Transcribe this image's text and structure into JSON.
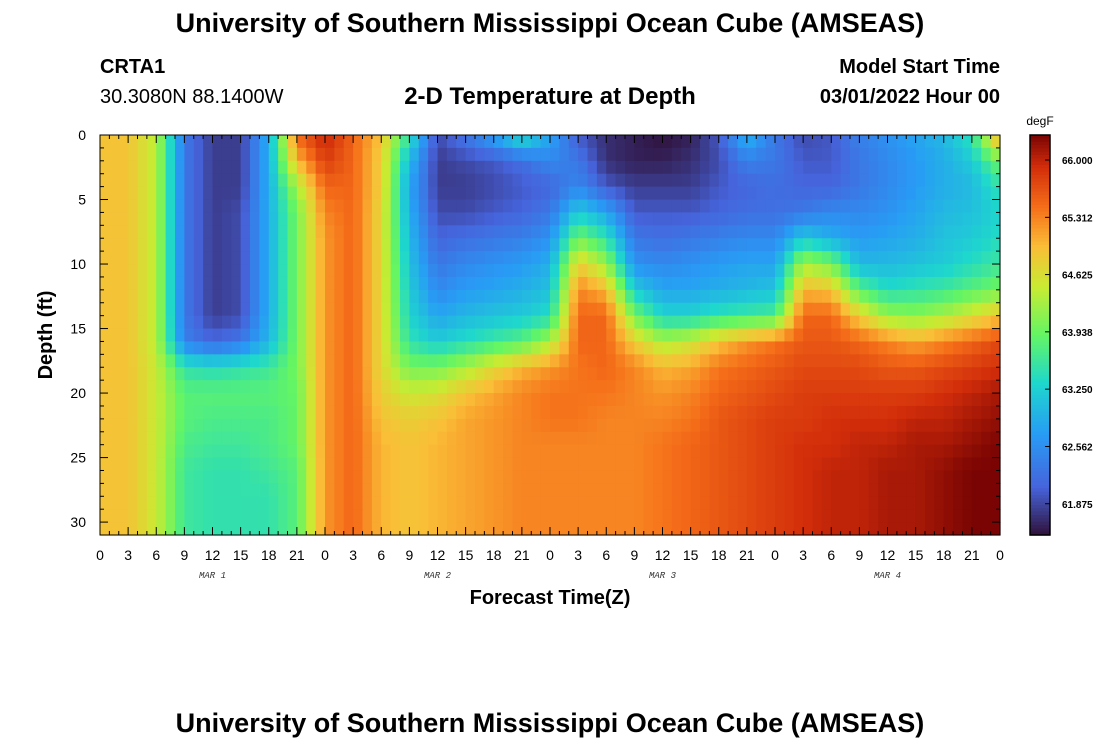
{
  "header": {
    "title": "University of Southern Mississippi Ocean Cube (AMSEAS)",
    "station": "CRTA1",
    "coordinates": "30.3080N  88.1400W",
    "subtitle": "2-D Temperature at Depth",
    "start_label": "Model Start Time",
    "start_value": "03/01/2022 Hour 00"
  },
  "footer": {
    "title": "University of Southern Mississippi Ocean Cube (AMSEAS)"
  },
  "chart_data": {
    "type": "heatmap",
    "title": "2-D Temperature at Depth",
    "xlabel": "Forecast Time(Z)",
    "ylabel": "Depth (ft)",
    "x_range_hours": [
      0,
      96
    ],
    "ylim": [
      0,
      31
    ],
    "x_tick_labels": [
      "0",
      "3",
      "6",
      "9",
      "12",
      "15",
      "18",
      "21",
      "0",
      "3",
      "6",
      "9",
      "12",
      "15",
      "18",
      "21",
      "0",
      "3",
      "6",
      "9",
      "12",
      "15",
      "18",
      "21",
      "0",
      "3",
      "6",
      "9",
      "12",
      "15",
      "18",
      "21",
      "0"
    ],
    "y_ticks": [
      0,
      5,
      10,
      15,
      20,
      25,
      30
    ],
    "date_labels": [
      {
        "hour": 12,
        "label": "MAR 1"
      },
      {
        "hour": 36,
        "label": "MAR 2"
      },
      {
        "hour": 60,
        "label": "MAR 3"
      },
      {
        "hour": 84,
        "label": "MAR 4"
      }
    ],
    "colorbar": {
      "unit": "degF",
      "min": 61.5,
      "max": 66.3,
      "ticks": [
        "66.000",
        "65.312",
        "64.625",
        "63.938",
        "63.250",
        "62.562",
        "61.875"
      ]
    },
    "grid": {
      "depths": [
        0,
        2,
        4,
        6,
        8,
        10,
        12,
        14,
        16,
        18,
        20,
        22,
        24,
        26,
        28,
        31
      ],
      "times": [
        0,
        3,
        6,
        9,
        12,
        15,
        18,
        21,
        24,
        27,
        30,
        33,
        36,
        39,
        42,
        45,
        48,
        51,
        54,
        57,
        60,
        63,
        66,
        69,
        72,
        75,
        78,
        81,
        84,
        87,
        90,
        93,
        96
      ],
      "temps": [
        [
          64.9,
          64.9,
          64.4,
          62.3,
          61.8,
          61.8,
          62.9,
          65.5,
          66.0,
          65.5,
          64.9,
          63.5,
          61.9,
          62.3,
          62.8,
          63.5,
          62.8,
          62.0,
          61.7,
          61.6,
          61.5,
          61.6,
          62.0,
          63.0,
          62.3,
          61.9,
          62.0,
          62.4,
          62.6,
          62.8,
          63.0,
          63.5,
          65.3
        ],
        [
          64.9,
          64.9,
          64.4,
          62.3,
          61.8,
          61.8,
          62.9,
          65.0,
          65.8,
          65.5,
          64.8,
          63.0,
          61.8,
          61.9,
          62.0,
          62.2,
          62.5,
          62.3,
          61.7,
          61.6,
          61.6,
          61.7,
          61.9,
          62.4,
          62.3,
          62.0,
          62.0,
          62.3,
          62.5,
          62.7,
          62.9,
          63.2,
          64.0
        ],
        [
          64.9,
          64.9,
          64.4,
          62.3,
          61.8,
          61.8,
          62.9,
          64.3,
          65.5,
          65.5,
          64.8,
          62.8,
          61.8,
          61.8,
          61.9,
          62.0,
          62.1,
          62.5,
          62.0,
          61.8,
          61.8,
          61.8,
          62.0,
          62.1,
          62.2,
          62.1,
          62.1,
          62.3,
          62.5,
          62.7,
          62.9,
          63.0,
          63.5
        ],
        [
          64.9,
          64.9,
          64.4,
          62.3,
          61.8,
          61.9,
          62.9,
          64.0,
          65.3,
          65.5,
          64.7,
          62.9,
          61.9,
          61.9,
          62.0,
          62.1,
          62.3,
          63.2,
          62.8,
          62.0,
          62.0,
          62.0,
          62.1,
          62.2,
          62.2,
          62.3,
          62.5,
          62.5,
          62.6,
          62.8,
          63.0,
          63.1,
          63.3
        ],
        [
          64.9,
          64.9,
          64.4,
          62.3,
          61.8,
          61.9,
          62.9,
          64.0,
          65.2,
          65.5,
          64.7,
          63.0,
          62.1,
          62.2,
          62.3,
          62.4,
          62.6,
          64.0,
          63.5,
          62.3,
          62.2,
          62.3,
          62.4,
          62.5,
          62.5,
          63.2,
          62.9,
          62.7,
          62.8,
          62.9,
          63.1,
          63.2,
          63.4
        ],
        [
          64.9,
          64.9,
          64.4,
          62.3,
          61.8,
          61.9,
          62.9,
          64.0,
          65.2,
          65.5,
          64.7,
          63.1,
          62.3,
          62.5,
          62.6,
          62.7,
          62.9,
          64.8,
          64.2,
          62.6,
          62.5,
          62.6,
          62.7,
          62.8,
          62.8,
          64.3,
          64.0,
          63.0,
          63.0,
          63.1,
          63.2,
          63.4,
          63.6
        ],
        [
          64.9,
          64.9,
          64.4,
          62.3,
          61.8,
          61.9,
          62.9,
          64.0,
          65.2,
          65.5,
          64.7,
          63.2,
          62.5,
          62.7,
          62.8,
          62.9,
          63.1,
          65.3,
          65.0,
          63.2,
          62.8,
          62.8,
          62.9,
          63.0,
          63.1,
          65.0,
          64.9,
          63.8,
          63.4,
          63.5,
          63.6,
          63.8,
          64.0
        ],
        [
          64.9,
          64.9,
          64.4,
          62.3,
          61.8,
          61.9,
          62.9,
          64.0,
          65.2,
          65.5,
          64.7,
          63.3,
          62.8,
          63.0,
          63.1,
          63.2,
          63.4,
          65.5,
          65.5,
          64.0,
          63.3,
          63.3,
          63.5,
          63.6,
          63.7,
          65.5,
          65.5,
          64.8,
          64.2,
          64.1,
          64.3,
          64.6,
          64.9
        ],
        [
          64.9,
          64.9,
          64.4,
          62.4,
          62.1,
          62.3,
          63.0,
          64.0,
          65.2,
          65.5,
          64.7,
          63.5,
          63.2,
          63.4,
          63.6,
          63.8,
          64.3,
          65.5,
          65.5,
          64.8,
          64.3,
          64.5,
          64.9,
          65.2,
          65.4,
          65.6,
          65.6,
          65.5,
          65.3,
          65.1,
          65.3,
          65.5,
          65.7
        ],
        [
          64.9,
          64.9,
          64.5,
          63.5,
          63.4,
          63.5,
          63.6,
          64.0,
          65.2,
          65.5,
          64.7,
          64.0,
          64.0,
          64.3,
          64.7,
          65.0,
          65.2,
          65.4,
          65.5,
          65.3,
          65.0,
          65.1,
          65.4,
          65.5,
          65.6,
          65.7,
          65.7,
          65.7,
          65.6,
          65.6,
          65.7,
          65.8,
          65.9
        ],
        [
          64.9,
          64.9,
          64.5,
          63.8,
          63.8,
          63.8,
          63.8,
          63.9,
          65.2,
          65.5,
          64.8,
          64.5,
          64.6,
          64.9,
          65.1,
          65.3,
          65.4,
          65.4,
          65.4,
          65.3,
          65.2,
          65.3,
          65.5,
          65.6,
          65.7,
          65.8,
          65.8,
          65.8,
          65.8,
          65.8,
          65.9,
          66.0,
          66.1
        ],
        [
          64.9,
          64.9,
          64.5,
          63.8,
          63.7,
          63.7,
          63.7,
          63.9,
          65.2,
          65.5,
          64.9,
          64.8,
          64.9,
          65.1,
          65.2,
          65.3,
          65.4,
          65.4,
          65.3,
          65.3,
          65.3,
          65.4,
          65.6,
          65.7,
          65.8,
          65.8,
          65.9,
          65.9,
          65.9,
          66.0,
          66.0,
          66.1,
          66.2
        ],
        [
          64.9,
          64.9,
          64.5,
          63.7,
          63.6,
          63.6,
          63.7,
          63.9,
          65.2,
          65.5,
          65.0,
          64.9,
          65.0,
          65.1,
          65.2,
          65.3,
          65.3,
          65.3,
          65.3,
          65.3,
          65.4,
          65.5,
          65.6,
          65.7,
          65.8,
          65.9,
          65.9,
          66.0,
          66.0,
          66.1,
          66.1,
          66.2,
          66.3
        ],
        [
          64.9,
          64.9,
          64.5,
          63.6,
          63.5,
          63.5,
          63.6,
          63.8,
          65.2,
          65.5,
          65.0,
          64.9,
          65.0,
          65.1,
          65.2,
          65.3,
          65.3,
          65.3,
          65.3,
          65.3,
          65.4,
          65.5,
          65.6,
          65.7,
          65.8,
          65.9,
          66.0,
          66.0,
          66.1,
          66.1,
          66.2,
          66.3,
          66.3
        ],
        [
          64.9,
          64.9,
          64.5,
          63.6,
          63.5,
          63.5,
          63.5,
          63.8,
          65.2,
          65.5,
          65.0,
          64.9,
          65.0,
          65.1,
          65.2,
          65.3,
          65.3,
          65.3,
          65.3,
          65.3,
          65.4,
          65.5,
          65.6,
          65.7,
          65.8,
          65.9,
          66.0,
          66.0,
          66.1,
          66.1,
          66.2,
          66.3,
          66.3
        ],
        [
          64.9,
          64.9,
          64.5,
          63.6,
          63.5,
          63.5,
          63.5,
          63.8,
          65.2,
          65.5,
          65.0,
          64.9,
          65.0,
          65.1,
          65.2,
          65.3,
          65.3,
          65.3,
          65.3,
          65.3,
          65.4,
          65.5,
          65.6,
          65.7,
          65.8,
          65.9,
          66.0,
          66.0,
          66.1,
          66.1,
          66.2,
          66.3,
          66.3
        ]
      ]
    }
  }
}
